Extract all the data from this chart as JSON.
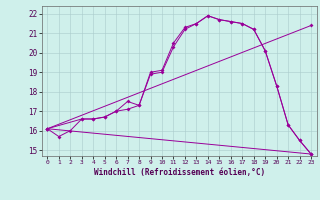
{
  "xlabel": "Windchill (Refroidissement éolien,°C)",
  "background_color": "#cff0eb",
  "line_color": "#990099",
  "xlim": [
    -0.5,
    23.5
  ],
  "ylim": [
    14.7,
    22.4
  ],
  "yticks": [
    15,
    16,
    17,
    18,
    19,
    20,
    21,
    22
  ],
  "xticks": [
    0,
    1,
    2,
    3,
    4,
    5,
    6,
    7,
    8,
    9,
    10,
    11,
    12,
    13,
    14,
    15,
    16,
    17,
    18,
    19,
    20,
    21,
    22,
    23
  ],
  "series1_x": [
    0,
    1,
    2,
    3,
    4,
    5,
    6,
    7,
    8,
    9,
    10,
    11,
    12,
    13,
    14,
    15,
    16,
    17,
    18,
    19,
    20,
    21,
    22,
    23
  ],
  "series1_y": [
    16.1,
    15.7,
    16.0,
    16.6,
    16.6,
    16.7,
    17.0,
    17.1,
    17.3,
    18.9,
    19.0,
    20.3,
    21.2,
    21.5,
    21.9,
    21.7,
    21.6,
    21.5,
    21.2,
    20.1,
    18.3,
    16.3,
    15.5,
    14.8
  ],
  "series2_x": [
    0,
    3,
    4,
    5,
    6,
    7,
    8,
    9,
    10,
    11,
    12,
    13,
    14,
    15,
    16,
    17,
    18,
    19,
    20,
    21,
    22,
    23
  ],
  "series2_y": [
    16.1,
    16.6,
    16.6,
    16.7,
    17.0,
    17.5,
    17.3,
    19.0,
    19.1,
    20.5,
    21.3,
    21.5,
    21.9,
    21.7,
    21.6,
    21.5,
    21.2,
    20.1,
    18.3,
    16.3,
    15.5,
    14.8
  ],
  "series3_x": [
    0,
    23
  ],
  "series3_y": [
    16.1,
    14.8
  ],
  "series4_x": [
    0,
    23
  ],
  "series4_y": [
    16.1,
    21.4
  ]
}
